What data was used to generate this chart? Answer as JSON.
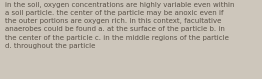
{
  "text": "in the soil, oxygen concentrations are highly variable even within\na soil particle. the center of the particle may be anoxic even if\nthe outer portions are oxygen rich. in this context, facultative\nanaerobes could be found a. at the surface of the particle b. in\nthe center of the particle c. in the middle regions of the particle\nd. throughout the particle",
  "background_color": "#cdc6bb",
  "text_color": "#5a5248",
  "font_size": 5.05,
  "fig_width": 2.62,
  "fig_height": 0.79,
  "linespacing": 1.45
}
